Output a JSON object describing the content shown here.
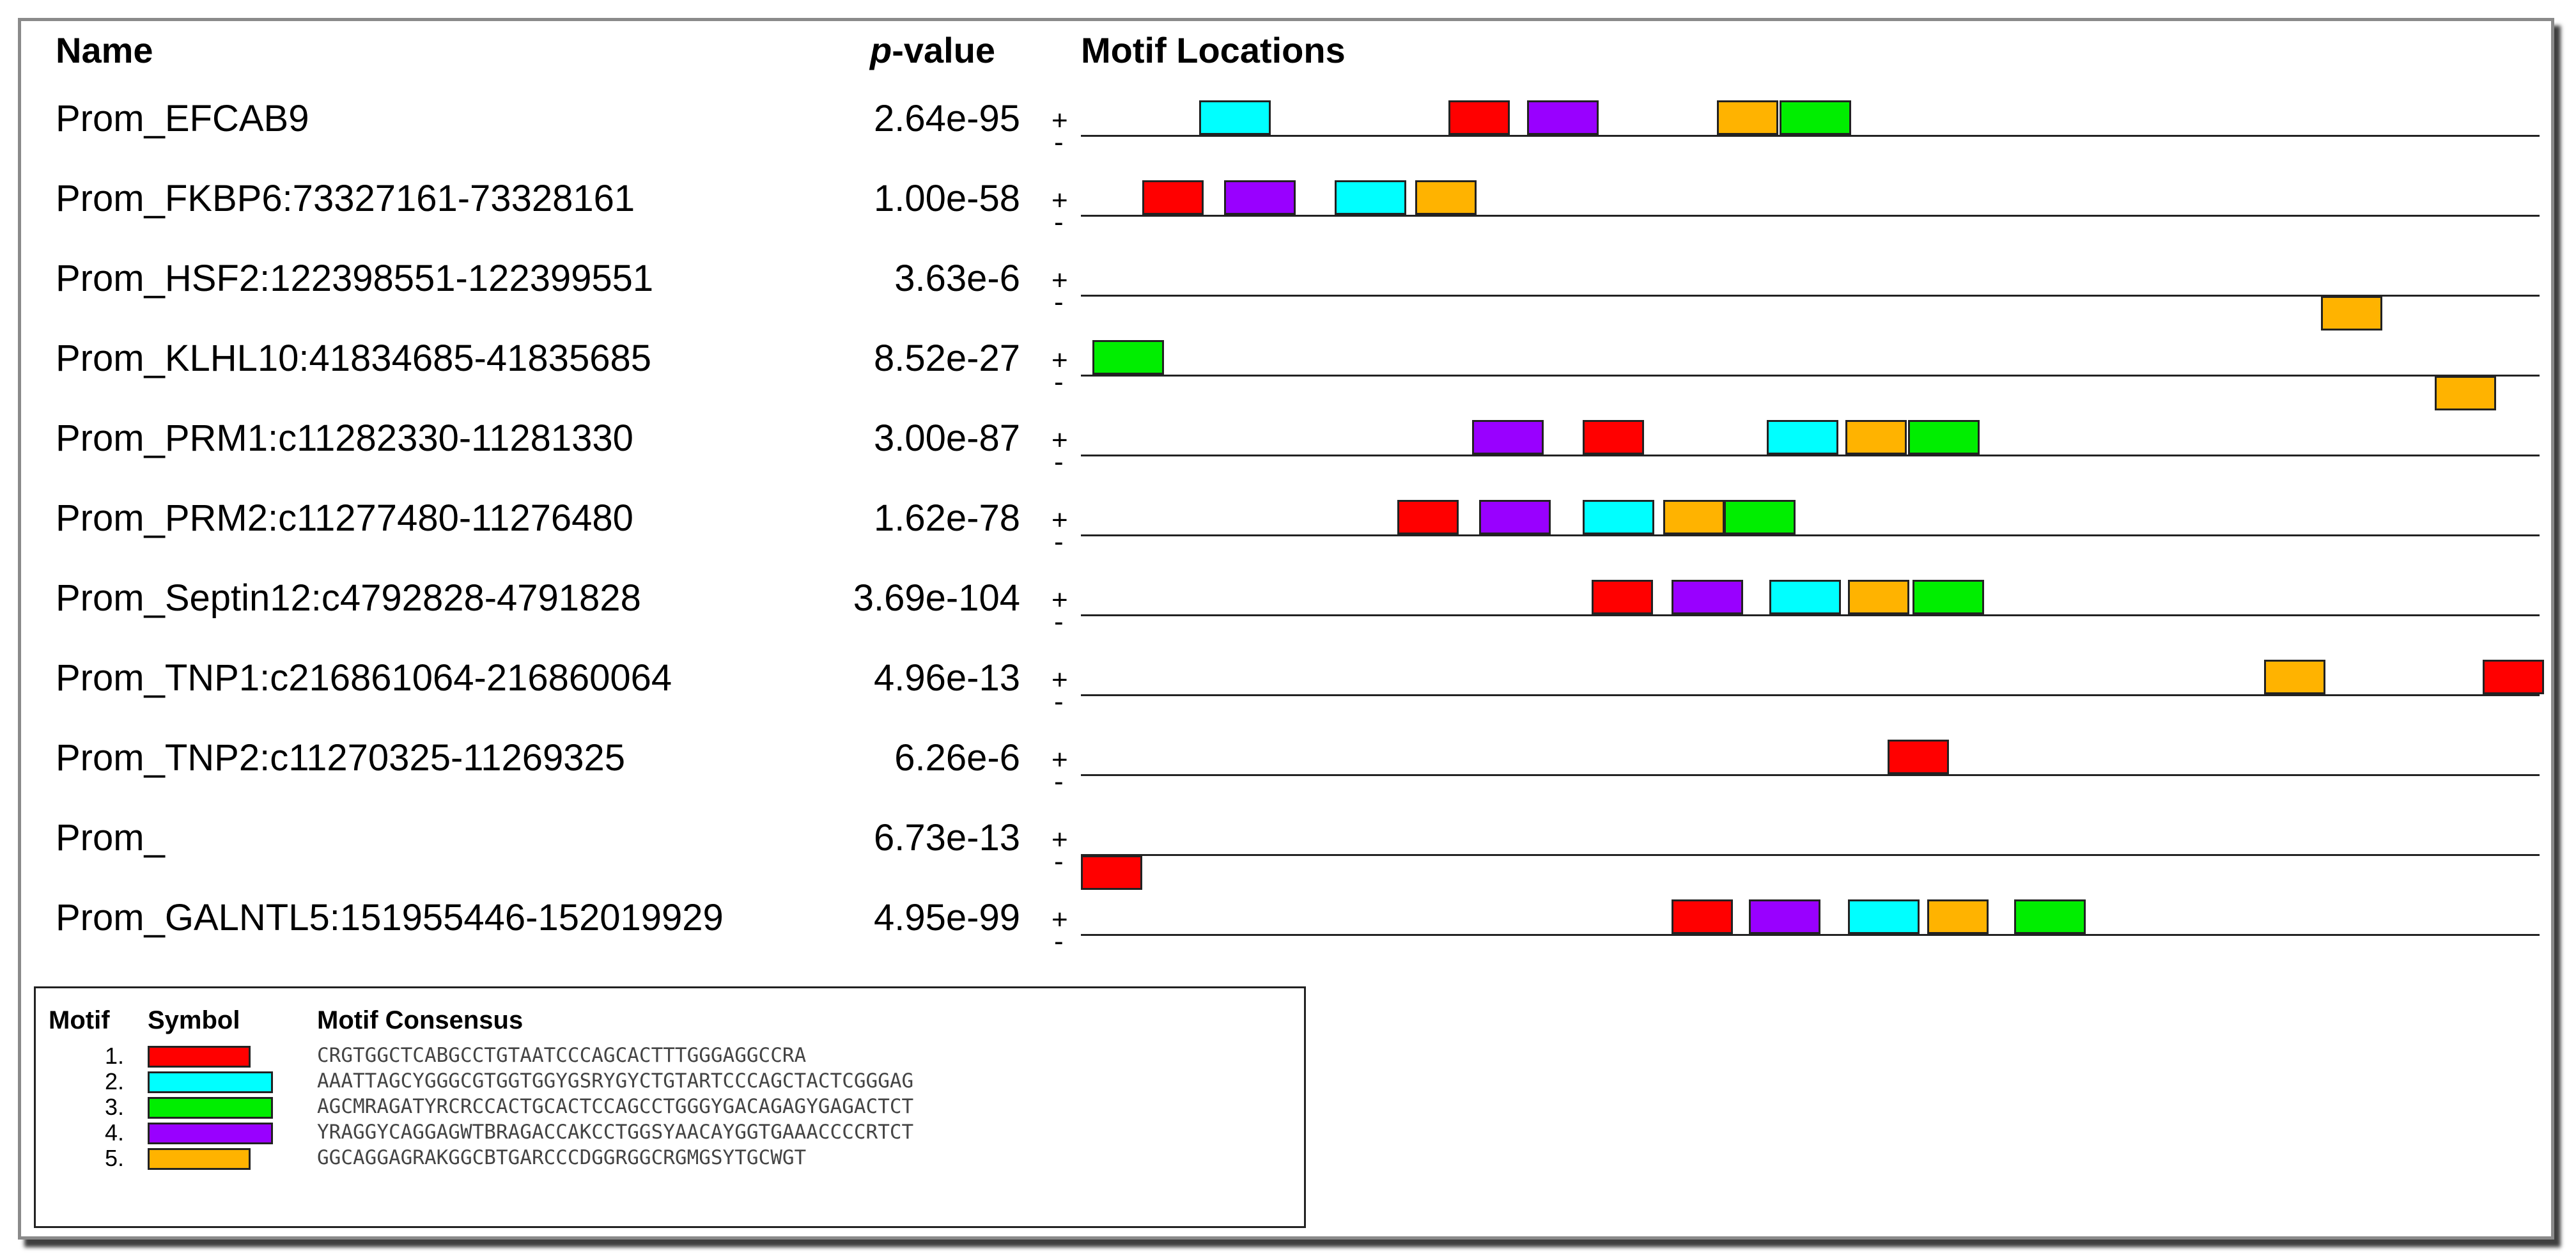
{
  "headers": {
    "name": "Name",
    "p_prefix": "p",
    "p_suffix": "-value",
    "locations": "Motif Locations"
  },
  "strand_plus": "+",
  "strand_minus": "-",
  "colors": {
    "1": "#ff0000",
    "2": "#00ffff",
    "3": "#00ee00",
    "4": "#9900ff",
    "5": "#ffb300"
  },
  "sequences": [
    {
      "name": "Prom_EFCAB9",
      "pvalue": "2.64e-95",
      "motifs": [
        {
          "m": 2,
          "s": "+",
          "pos": 0.081
        },
        {
          "m": 1,
          "s": "+",
          "pos": 0.252
        },
        {
          "m": 4,
          "s": "+",
          "pos": 0.306
        },
        {
          "m": 5,
          "s": "+",
          "pos": 0.436
        },
        {
          "m": 3,
          "s": "+",
          "pos": 0.479
        }
      ]
    },
    {
      "name": "Prom_FKBP6:73327161-73328161",
      "pvalue": "1.00e-58",
      "motifs": [
        {
          "m": 1,
          "s": "+",
          "pos": 0.042
        },
        {
          "m": 4,
          "s": "+",
          "pos": 0.098
        },
        {
          "m": 2,
          "s": "+",
          "pos": 0.174
        },
        {
          "m": 5,
          "s": "+",
          "pos": 0.229
        }
      ]
    },
    {
      "name": "Prom_HSF2:122398551-122399551",
      "pvalue": "3.63e-6",
      "motifs": [
        {
          "m": 5,
          "s": "-",
          "pos": 0.85
        }
      ]
    },
    {
      "name": "Prom_KLHL10:41834685-41835685",
      "pvalue": "8.52e-27",
      "motifs": [
        {
          "m": 3,
          "s": "+",
          "pos": 0.008
        },
        {
          "m": 5,
          "s": "-",
          "pos": 0.928
        }
      ]
    },
    {
      "name": "Prom_PRM1:c11282330-11281330",
      "pvalue": "3.00e-87",
      "motifs": [
        {
          "m": 4,
          "s": "+",
          "pos": 0.268
        },
        {
          "m": 1,
          "s": "+",
          "pos": 0.344
        },
        {
          "m": 2,
          "s": "+",
          "pos": 0.47
        },
        {
          "m": 5,
          "s": "+",
          "pos": 0.524
        },
        {
          "m": 3,
          "s": "+",
          "pos": 0.567
        }
      ]
    },
    {
      "name": "Prom_PRM2:c11277480-11276480",
      "pvalue": "1.62e-78",
      "motifs": [
        {
          "m": 1,
          "s": "+",
          "pos": 0.217
        },
        {
          "m": 4,
          "s": "+",
          "pos": 0.273
        },
        {
          "m": 2,
          "s": "+",
          "pos": 0.344
        },
        {
          "m": 5,
          "s": "+",
          "pos": 0.399
        },
        {
          "m": 3,
          "s": "+",
          "pos": 0.441
        }
      ]
    },
    {
      "name": "Prom_Septin12:c4792828-4791828",
      "pvalue": "3.69e-104",
      "motifs": [
        {
          "m": 1,
          "s": "+",
          "pos": 0.35
        },
        {
          "m": 4,
          "s": "+",
          "pos": 0.405
        },
        {
          "m": 2,
          "s": "+",
          "pos": 0.472
        },
        {
          "m": 5,
          "s": "+",
          "pos": 0.526
        },
        {
          "m": 3,
          "s": "+",
          "pos": 0.57
        }
      ]
    },
    {
      "name": "Prom_TNP1:c216861064-216860064",
      "pvalue": "4.96e-13",
      "motifs": [
        {
          "m": 5,
          "s": "+",
          "pos": 0.811
        },
        {
          "m": 1,
          "s": "+",
          "pos": 0.961
        }
      ]
    },
    {
      "name": "Prom_TNP2:c11270325-11269325",
      "pvalue": "6.26e-6",
      "motifs": [
        {
          "m": 1,
          "s": "+",
          "pos": 0.553
        }
      ]
    },
    {
      "name": "Prom_",
      "pvalue": "6.73e-13",
      "motifs": [
        {
          "m": 1,
          "s": "-",
          "pos": 0.0
        }
      ]
    },
    {
      "name": "Prom_GALNTL5:151955446-152019929",
      "pvalue": "4.95e-99",
      "motifs": [
        {
          "m": 1,
          "s": "+",
          "pos": 0.405
        },
        {
          "m": 4,
          "s": "+",
          "pos": 0.458
        },
        {
          "m": 2,
          "s": "+",
          "pos": 0.526
        },
        {
          "m": 5,
          "s": "+",
          "pos": 0.58
        },
        {
          "m": 3,
          "s": "+",
          "pos": 0.64
        }
      ]
    }
  ],
  "legend": {
    "headers": {
      "motif": "Motif",
      "symbol": "Symbol",
      "consensus": "Motif Consensus"
    },
    "motifs": [
      {
        "num": "1.",
        "color_key": "1",
        "width_frac": 0.41,
        "consensus": "CRGTGGCTCABGCCTGTAATCCCAGCACTTTGGGAGGCCRA"
      },
      {
        "num": "2.",
        "color_key": "2",
        "width_frac": 0.5,
        "consensus": "AAATTAGCYGGGCGTGGTGGYGSRYGYCTGTARTCCCAGCTACTCGGGAG"
      },
      {
        "num": "3.",
        "color_key": "3",
        "width_frac": 0.5,
        "consensus": "AGCMRAGATYRCRCCACTGCACTCCAGCCTGGGYGACAGAGYGAGACTCT"
      },
      {
        "num": "4.",
        "color_key": "4",
        "width_frac": 0.5,
        "consensus": "YRAGGYCAGGAGWTBRAGACCAKCCTGGSYAACAYGGTGAAACCCCRTCT"
      },
      {
        "num": "5.",
        "color_key": "5",
        "width_frac": 0.41,
        "consensus": "GGCAGGAGRAKGGCBTGARCCCDGGRGGCRGMGSYTGCWGT"
      }
    ]
  }
}
